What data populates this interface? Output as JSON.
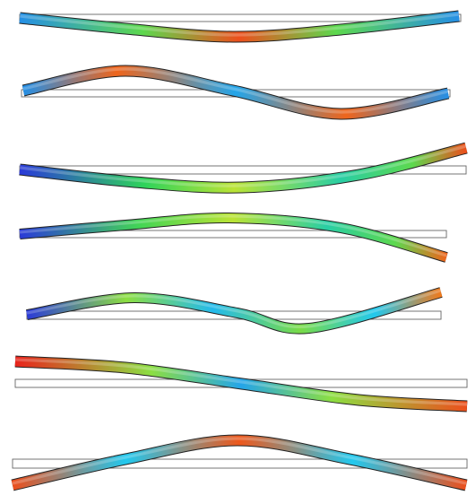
{
  "figure": {
    "mode_count": 7,
    "colormap": [
      "#2a3ad8",
      "#22c8ee",
      "#2fd35a",
      "#e8e82a",
      "#f07a1c",
      "#e8241c"
    ],
    "undeformed_fill": "#ffffff",
    "undeformed_stroke": "#666666",
    "beam_outline": "#222222"
  }
}
